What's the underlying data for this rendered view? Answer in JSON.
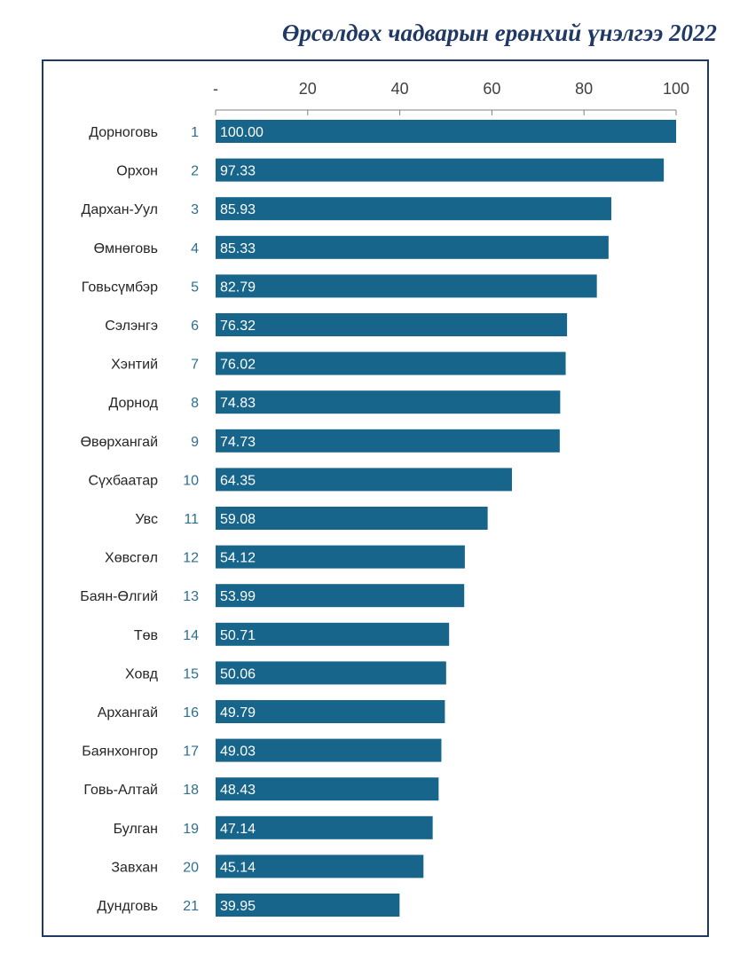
{
  "title": "Өрсөлдөх чадварын ерөнхий үнэлгээ 2022",
  "colors": {
    "bar": "#17658a",
    "frame": "#1f3864",
    "title": "#1f3864",
    "rank": "#2e6f8e"
  },
  "chart_data": {
    "type": "bar",
    "orientation": "horizontal",
    "title": "Өрсөлдөх чадварын ерөнхий үнэлгээ 2022",
    "xlim": [
      0,
      100
    ],
    "x_ticks": [
      "-",
      "20",
      "40",
      "60",
      "80",
      "100"
    ],
    "axis_position": "top",
    "grid": false,
    "legend": "none",
    "categories": [
      "Дорноговь",
      "Орхон",
      "Дархан-Уул",
      "Өмнөговь",
      "Говьсүмбэр",
      "Сэлэнгэ",
      "Хэнтий",
      "Дорнод",
      "Өвөрхангай",
      "Сүхбаатар",
      "Увс",
      "Хөвсгөл",
      "Баян-Өлгий",
      "Төв",
      "Ховд",
      "Архангай",
      "Баянхонгор",
      "Говь-Алтай",
      "Булган",
      "Завхан",
      "Дундговь"
    ],
    "ranks": [
      "1",
      "2",
      "3",
      "4",
      "5",
      "6",
      "7",
      "8",
      "9",
      "10",
      "11",
      "12",
      "13",
      "14",
      "15",
      "16",
      "17",
      "18",
      "19",
      "20",
      "21"
    ],
    "values": [
      100.0,
      97.33,
      85.93,
      85.33,
      82.79,
      76.32,
      76.02,
      74.83,
      74.73,
      64.35,
      59.08,
      54.12,
      53.99,
      50.71,
      50.06,
      49.79,
      49.03,
      48.43,
      47.14,
      45.14,
      39.95
    ],
    "value_labels": [
      "100.00",
      "97.33",
      "85.93",
      "85.33",
      "82.79",
      "76.32",
      "76.02",
      "74.83",
      "74.73",
      "64.35",
      "59.08",
      "54.12",
      "53.99",
      "50.71",
      "50.06",
      "49.79",
      "49.03",
      "48.43",
      "47.14",
      "45.14",
      "39.95"
    ]
  }
}
